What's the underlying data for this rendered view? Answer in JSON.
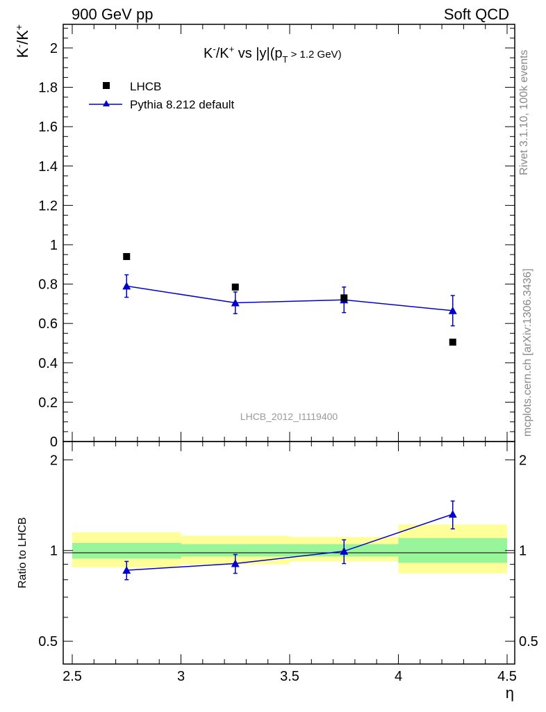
{
  "header": {
    "left": "900 GeV pp",
    "right": "Soft QCD"
  },
  "side_text": {
    "rivet": "Rivet 3.1.10,  100k events",
    "mcplots": "mcplots.cern.ch [arXiv:1306.3436]"
  },
  "colors": {
    "lhcb": "#000000",
    "pythia": "#0000cc",
    "band_inner": "#99f599",
    "band_outer": "#ffff99"
  },
  "chart_data": [
    {
      "type": "scatter",
      "title_parts": {
        "main": "K",
        "sup1": "-",
        "slash": "/K",
        "sup2": "+",
        "rest": " vs |y|(p",
        "sub": "T",
        "tail": " > 1.2 GeV)"
      },
      "ylabel_parts": {
        "k1": "K",
        "s1": "-",
        "k2": "/K",
        "s2": "+"
      },
      "watermark": "LHCB_2012_I1119400",
      "ylim": [
        0,
        2.12
      ],
      "yticks": [
        0,
        0.2,
        0.4,
        0.6,
        0.8,
        1,
        1.2,
        1.4,
        1.6,
        1.8,
        2
      ],
      "ytick_labels": [
        "0",
        "0.2",
        "0.4",
        "0.6",
        "0.8",
        "1",
        "1.2",
        "1.4",
        "1.6",
        "1.8",
        "2"
      ],
      "legend": {
        "placement": "top-left",
        "entries": [
          "LHCB",
          "Pythia 8.212 default"
        ]
      },
      "series": [
        {
          "name": "LHCB",
          "marker": "square",
          "x": [
            2.75,
            3.25,
            3.75,
            4.25
          ],
          "y": [
            0.94,
            0.785,
            0.73,
            0.505
          ]
        },
        {
          "name": "Pythia 8.212 default",
          "marker": "triangle",
          "x": [
            2.75,
            3.25,
            3.75,
            4.25
          ],
          "y": [
            0.79,
            0.705,
            0.72,
            0.665
          ],
          "yerr": [
            0.057,
            0.055,
            0.065,
            0.077
          ]
        }
      ]
    },
    {
      "type": "scatter",
      "ylabel": "Ratio to LHCB",
      "yscale": "log",
      "ylim": [
        0.42,
        2.3
      ],
      "yticks": [
        0.5,
        1,
        2
      ],
      "ytick_labels": [
        "0.5",
        "1",
        "2"
      ],
      "bands": [
        {
          "x": [
            2.5,
            3.0
          ],
          "inner": [
            0.94,
            1.06
          ],
          "outer": [
            0.88,
            1.15
          ]
        },
        {
          "x": [
            3.0,
            3.5
          ],
          "inner": [
            0.955,
            1.05
          ],
          "outer": [
            0.9,
            1.12
          ]
        },
        {
          "x": [
            3.5,
            4.0
          ],
          "inner": [
            0.955,
            1.05
          ],
          "outer": [
            0.92,
            1.11
          ]
        },
        {
          "x": [
            4.0,
            4.5
          ],
          "inner": [
            0.91,
            1.1
          ],
          "outer": [
            0.84,
            1.22
          ]
        }
      ],
      "series": [
        {
          "name": "Pythia 8.212 default",
          "marker": "triangle",
          "x": [
            2.75,
            3.25,
            3.75,
            4.25
          ],
          "y": [
            0.86,
            0.905,
            0.995,
            1.32
          ],
          "yerr": [
            0.06,
            0.065,
            0.09,
            0.14
          ]
        }
      ],
      "xlim": [
        2.5,
        4.5
      ],
      "xticks": [
        2.5,
        3,
        3.5,
        4,
        4.5
      ],
      "xtick_labels": [
        "2.5",
        "3",
        "3.5",
        "4",
        "4.5"
      ],
      "xlabel": "η"
    }
  ]
}
